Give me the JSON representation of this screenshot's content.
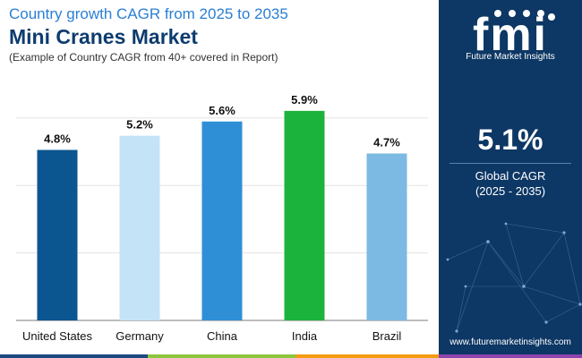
{
  "header": {
    "title_line1": "Country growth CAGR from 2025 to 2035",
    "title_line2": "Mini Cranes Market",
    "subtitle": "(Example of Country CAGR from 40+ covered in Report)"
  },
  "chart_data": {
    "type": "bar",
    "categories": [
      "United States",
      "Germany",
      "China",
      "India",
      "Brazil"
    ],
    "values": [
      4.8,
      5.2,
      5.6,
      5.9,
      4.7
    ],
    "data_labels": [
      "4.8%",
      "5.2%",
      "5.6%",
      "5.9%",
      "4.7%"
    ],
    "colors": [
      "#0b5591",
      "#c5e3f6",
      "#2f8fd6",
      "#1cb33c",
      "#7cb9e3"
    ],
    "ylim": [
      0,
      6.3
    ],
    "gridlines": [
      0,
      1.9,
      3.8,
      5.7
    ],
    "title": "",
    "xlabel": "",
    "ylabel": "",
    "grid": true
  },
  "side_panel": {
    "logo_text": "fmi",
    "logo_caption": "Future Market Insights",
    "cagr_value": "5.1%",
    "cagr_label": "Global CAGR",
    "cagr_period": "(2025 - 2035)",
    "website": "www.futuremarketinsights.com"
  },
  "theme": {
    "panel_bg": "#0d3764",
    "title_blue": "#2a7fd4",
    "title_navy": "#0d3c6e",
    "footer_colors": [
      "#1a4a80",
      "#8cc63f",
      "#f39c12",
      "#8e44ad"
    ]
  }
}
